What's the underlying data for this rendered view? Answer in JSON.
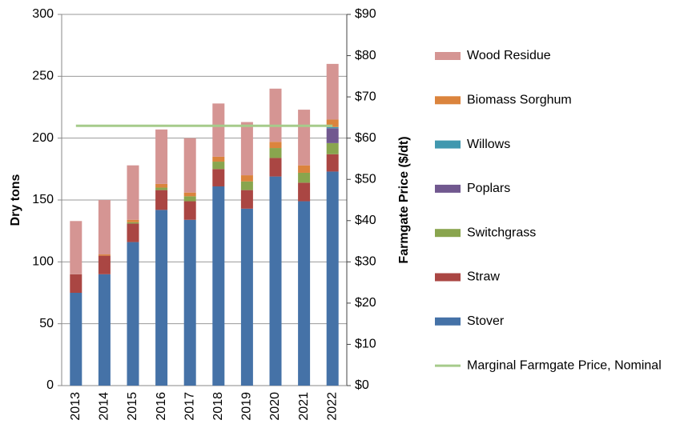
{
  "chart_data": {
    "type": "bar",
    "stacked": true,
    "categories": [
      "2013",
      "2014",
      "2015",
      "2016",
      "2017",
      "2018",
      "2019",
      "2020",
      "2021",
      "2022"
    ],
    "ylabel": "Dry tons",
    "y2label": "Farmgate Price ($/dt)",
    "ylim": [
      0,
      300
    ],
    "yticks": [
      0,
      50,
      100,
      150,
      200,
      250,
      300
    ],
    "y2lim": [
      0,
      90
    ],
    "y2ticks": [
      {
        "value": 0,
        "label": "$0"
      },
      {
        "value": 10,
        "label": "$10"
      },
      {
        "value": 20,
        "label": "$20"
      },
      {
        "value": 30,
        "label": "$30"
      },
      {
        "value": 40,
        "label": "$40"
      },
      {
        "value": 50,
        "label": "$50"
      },
      {
        "value": 60,
        "label": "$60"
      },
      {
        "value": 70,
        "label": "$70"
      },
      {
        "value": 80,
        "label": "$80"
      },
      {
        "value": 90,
        "label": "$90"
      }
    ],
    "grid": true,
    "series": [
      {
        "name": "Stover",
        "color": "#4572a7",
        "values": [
          75,
          90,
          116,
          142,
          134,
          161,
          143,
          169,
          149,
          173
        ]
      },
      {
        "name": "Straw",
        "color": "#aa4643",
        "values": [
          15,
          15,
          15,
          16,
          15,
          14,
          15,
          15,
          15,
          14
        ]
      },
      {
        "name": "Switchgrass",
        "color": "#89a54e",
        "values": [
          0,
          0,
          1,
          2,
          4,
          6,
          7,
          8,
          8,
          9
        ]
      },
      {
        "name": "Poplars",
        "color": "#71588f",
        "values": [
          0,
          0,
          0,
          0,
          0,
          0,
          0,
          0,
          0,
          12
        ]
      },
      {
        "name": "Willows",
        "color": "#4198af",
        "values": [
          0,
          0,
          0,
          0,
          0,
          0,
          0,
          0,
          0,
          1
        ]
      },
      {
        "name": "Biomass Sorghum",
        "color": "#db843d",
        "values": [
          0,
          1,
          2,
          3,
          3,
          4,
          5,
          5,
          6,
          6
        ]
      },
      {
        "name": "Wood Residue",
        "color": "#d59593",
        "values": [
          43,
          44,
          44,
          44,
          44,
          43,
          43,
          43,
          45,
          45
        ]
      },
      {
        "name": "Marginal Farmgate Price, Nominal",
        "color": "#a6cb8b",
        "type": "line",
        "axis": "y2",
        "values": [
          63,
          63,
          63,
          63,
          63,
          63,
          63,
          63,
          63,
          63
        ]
      }
    ]
  }
}
